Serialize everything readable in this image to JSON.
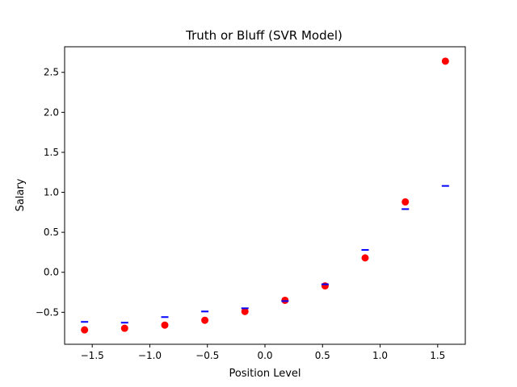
{
  "chart_data": {
    "type": "scatter",
    "title": "Truth or Bluff (SVR Model)",
    "xlabel": "Position Level",
    "ylabel": "Salary",
    "xlim": [
      -1.74,
      1.74
    ],
    "ylim": [
      -0.9,
      2.82
    ],
    "grid": false,
    "x_ticks": [
      -1.5,
      -1.0,
      -0.5,
      0.0,
      0.5,
      1.0,
      1.5
    ],
    "x_tick_labels": [
      "−1.5",
      "−1.0",
      "−0.5",
      "0.0",
      "0.5",
      "1.0",
      "1.5"
    ],
    "y_ticks": [
      -0.5,
      0.0,
      0.5,
      1.0,
      1.5,
      2.0,
      2.5
    ],
    "y_tick_labels": [
      "−0.5",
      "0.0",
      "0.5",
      "1.0",
      "1.5",
      "2.0",
      "2.5"
    ],
    "series": [
      {
        "marker": "circle",
        "color": "#ff0000",
        "x": [
          -1.567,
          -1.219,
          -0.87,
          -0.522,
          -0.174,
          0.174,
          0.522,
          0.87,
          1.219,
          1.567
        ],
        "y": [
          -0.72,
          -0.7,
          -0.66,
          -0.6,
          -0.49,
          -0.35,
          -0.17,
          0.18,
          0.88,
          2.64
        ]
      },
      {
        "marker": "dash",
        "color": "#0000ff",
        "x": [
          -1.567,
          -1.219,
          -0.87,
          -0.522,
          -0.174,
          0.174,
          0.522,
          0.87,
          1.219,
          1.567
        ],
        "y": [
          -0.62,
          -0.63,
          -0.56,
          -0.49,
          -0.45,
          -0.36,
          -0.15,
          0.28,
          0.79,
          1.08
        ]
      }
    ]
  }
}
